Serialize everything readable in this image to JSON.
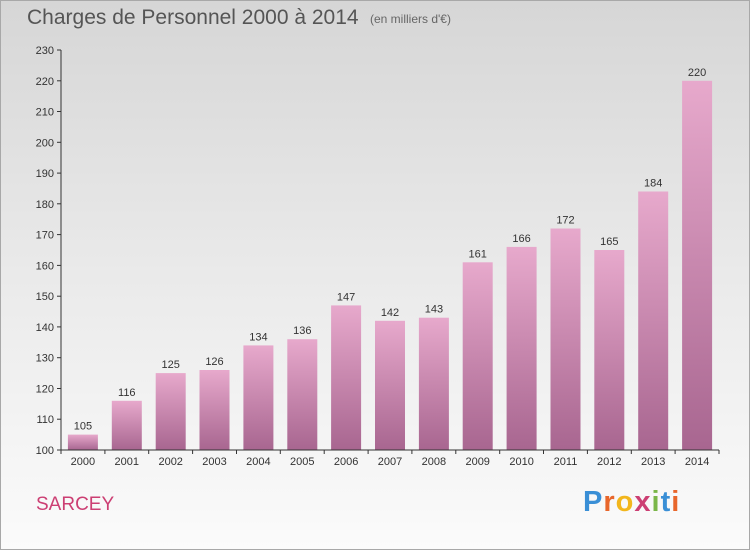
{
  "header": {
    "title": "Charges de Personnel 2000 à 2014",
    "unit": "(en milliers d'€)"
  },
  "footer": {
    "place": "SARCEY",
    "brand_letters": [
      "P",
      "r",
      "o",
      "x",
      "i",
      "t",
      "i"
    ],
    "brand_colors": [
      "#3a8fd6",
      "#e8662b",
      "#f2b61c",
      "#cc3f73",
      "#7ab648",
      "#3a8fd6",
      "#e8662b"
    ]
  },
  "colors": {
    "bar_top": "#e7a9cc",
    "bar_bottom": "#a86690",
    "axis": "#333333",
    "place": "#cc3f73"
  },
  "chart_data": {
    "type": "bar",
    "title": "Charges de Personnel 2000 à 2014",
    "subtitle": "(en milliers d'€)",
    "categories": [
      "2000",
      "2001",
      "2002",
      "2003",
      "2004",
      "2005",
      "2006",
      "2007",
      "2008",
      "2009",
      "2010",
      "2011",
      "2012",
      "2013",
      "2014"
    ],
    "values": [
      105,
      116,
      125,
      126,
      134,
      136,
      147,
      142,
      143,
      161,
      166,
      172,
      165,
      184,
      220
    ],
    "ylim": [
      100,
      230
    ],
    "yticks": [
      100,
      110,
      120,
      130,
      140,
      150,
      160,
      170,
      180,
      190,
      200,
      210,
      220,
      230
    ],
    "grid": false,
    "data_labels": true
  }
}
